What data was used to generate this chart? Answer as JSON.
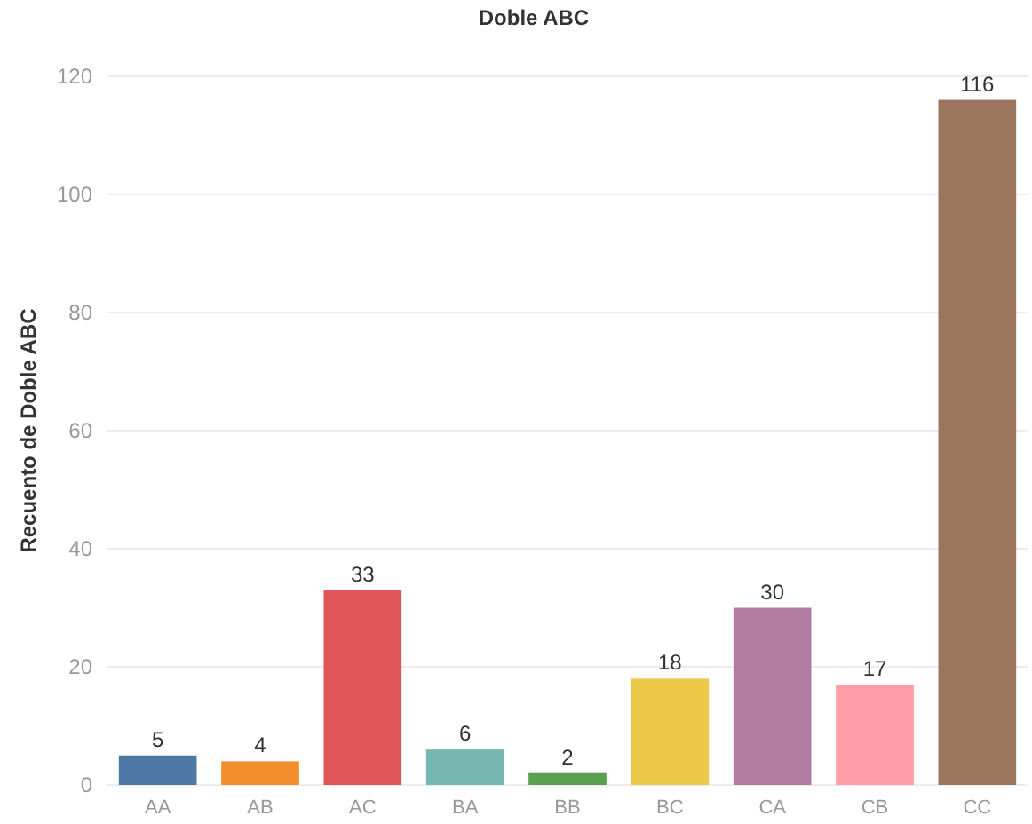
{
  "chart_data": {
    "type": "bar",
    "title": "Doble ABC",
    "ylabel": "Recuento de Doble ABC",
    "categories": [
      "AA",
      "AB",
      "AC",
      "BA",
      "BB",
      "BC",
      "CA",
      "CB",
      "CC"
    ],
    "values": [
      5,
      4,
      33,
      6,
      2,
      18,
      30,
      17,
      116
    ],
    "colors": [
      "#4e79a7",
      "#f28e2b",
      "#e15759",
      "#76b7b2",
      "#59a14f",
      "#edc948",
      "#b07aa1",
      "#ff9da7",
      "#9c755f"
    ],
    "ylim": [
      0,
      120
    ],
    "yticks": [
      0,
      20,
      40,
      60,
      80,
      100,
      120
    ],
    "grid": "y",
    "data_labels": true
  }
}
